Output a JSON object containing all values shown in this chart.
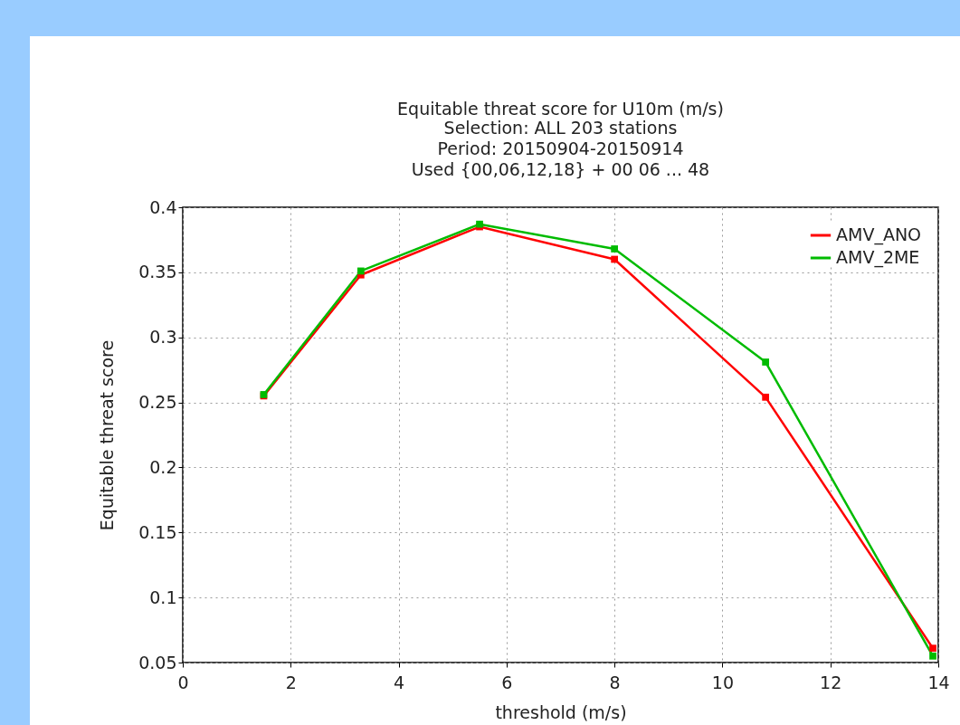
{
  "chart_data": {
    "type": "line",
    "title": "Equitable threat score  for U10m (m/s)",
    "subtitle": "Selection: ALL    203 stations\nPeriod: 20150904-20150914\nUsed {00,06,12,18} + 00 06 ... 48",
    "xlabel": "threshold (m/s)",
    "ylabel": "Equitable threat score",
    "x": [
      1.5,
      3.3,
      5.5,
      8,
      10.8,
      13.9
    ],
    "series": [
      {
        "name": "AMV_ANO",
        "color": "#ff0000",
        "values": [
          0.255,
          0.348,
          0.385,
          0.36,
          0.254,
          0.061
        ]
      },
      {
        "name": "AMV_2ME",
        "color": "#00bb00",
        "values": [
          0.256,
          0.351,
          0.387,
          0.368,
          0.281,
          0.055
        ]
      }
    ],
    "xlim": [
      0,
      14
    ],
    "xticks": [
      0,
      2,
      4,
      6,
      8,
      10,
      12,
      14
    ],
    "ylim": [
      0.05,
      0.4
    ],
    "yticks": [
      0.05,
      0.1,
      0.15,
      0.2,
      0.25,
      0.3,
      0.35,
      0.4
    ],
    "grid": true,
    "legend": "top right",
    "marker": "square",
    "line_style": "solid"
  }
}
